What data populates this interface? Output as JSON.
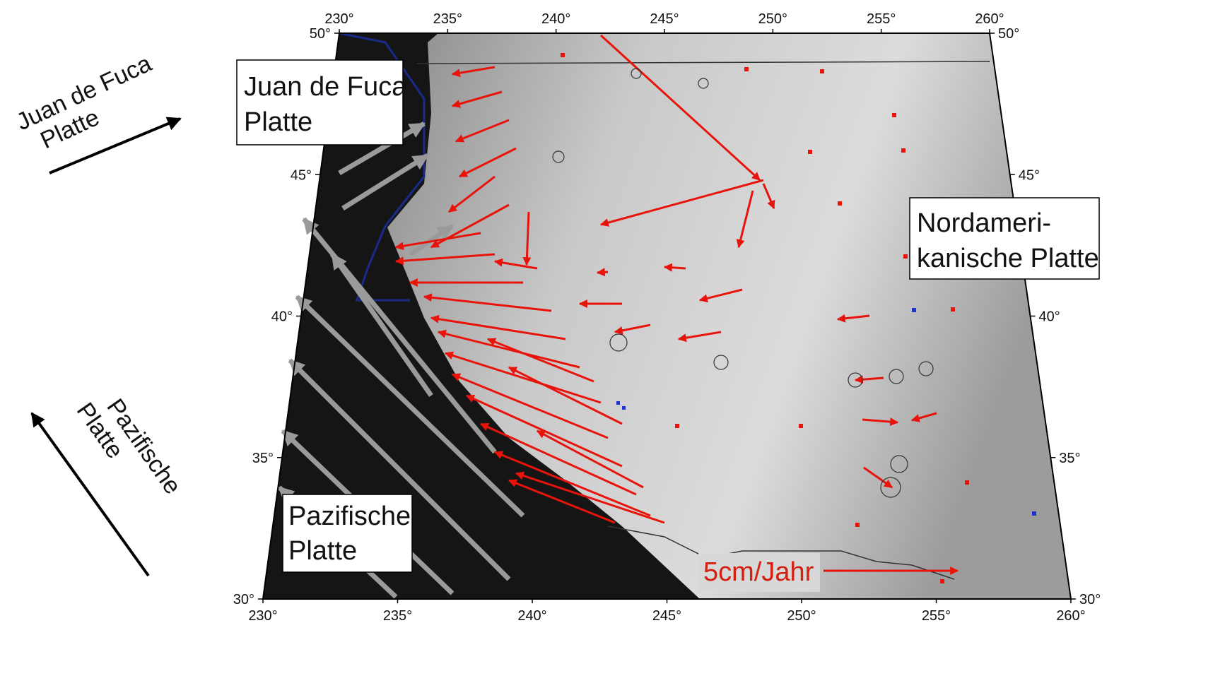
{
  "map": {
    "lon_ticks": [
      {
        "value": 230,
        "label": "230°"
      },
      {
        "value": 235,
        "label": "235°"
      },
      {
        "value": 240,
        "label": "240°"
      },
      {
        "value": 245,
        "label": "245°"
      },
      {
        "value": 250,
        "label": "250°"
      },
      {
        "value": 255,
        "label": "255°"
      },
      {
        "value": 260,
        "label": "260°"
      }
    ],
    "lat_ticks": [
      {
        "value": 30,
        "label": "30°"
      },
      {
        "value": 35,
        "label": "35°"
      },
      {
        "value": 40,
        "label": "40°"
      },
      {
        "value": 45,
        "label": "45°"
      },
      {
        "value": 50,
        "label": "50°"
      }
    ],
    "lon_range": [
      230,
      260
    ],
    "lat_range": [
      30,
      50
    ],
    "boxes": {
      "juan_de_fuca": [
        "Juan de Fuca",
        "Platte"
      ],
      "nordamerikanische": [
        "Nordameri-",
        "kanische Platte"
      ],
      "pazifische": [
        "Pazifische",
        "Platte"
      ]
    },
    "side_labels": {
      "juan_de_fuca": [
        "Juan de Fuca",
        "Platte"
      ],
      "pazifische": [
        "Pazifische",
        "Platte"
      ]
    },
    "scale_label": "5cm/Jahr"
  }
}
